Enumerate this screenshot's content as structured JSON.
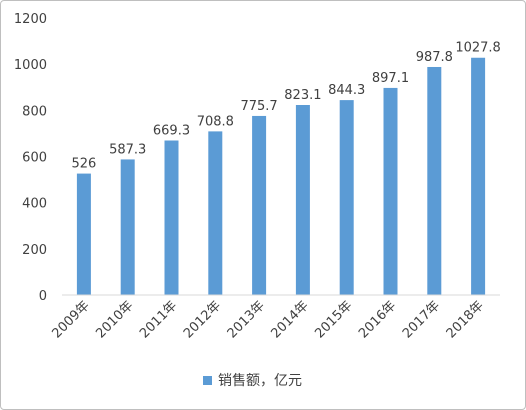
{
  "chart_data": {
    "type": "bar",
    "categories": [
      "2009年",
      "2010年",
      "2011年",
      "2012年",
      "2013年",
      "2014年",
      "2015年",
      "2016年",
      "2017年",
      "2018年"
    ],
    "series": [
      {
        "name": "销售额，亿元",
        "values": [
          526,
          587.3,
          669.3,
          708.8,
          775.7,
          823.1,
          844.3,
          897.1,
          987.8,
          1027.8
        ],
        "labels": [
          "526",
          "587.3",
          "669.3",
          "708.8",
          "775.7",
          "823.1",
          "844.3",
          "897.1",
          "987.8",
          "1027.8"
        ],
        "color": "#5b9bd5"
      }
    ],
    "yticks": [
      "0",
      "200",
      "400",
      "600",
      "800",
      "1000",
      "1200"
    ],
    "ylim": [
      0,
      1200
    ],
    "grid": false,
    "legend_position": "bottom"
  }
}
